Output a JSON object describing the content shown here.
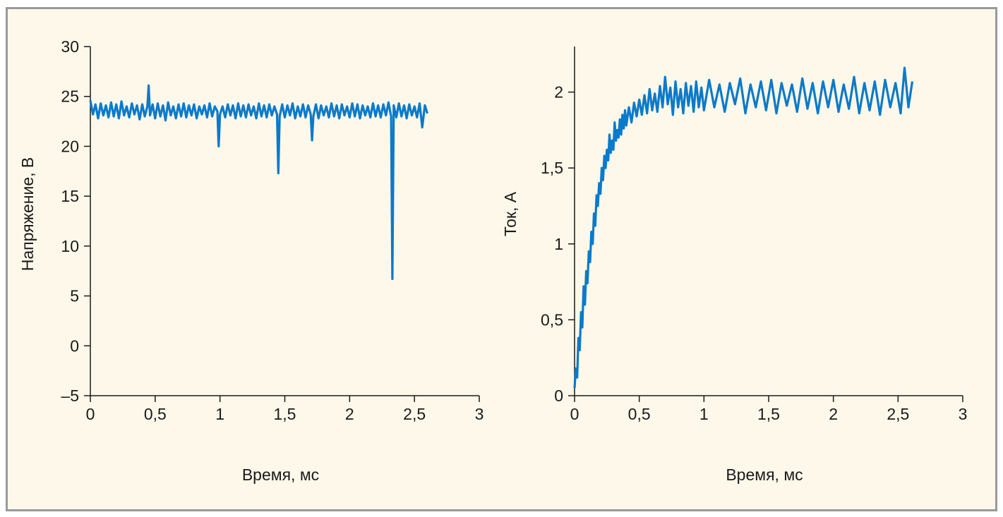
{
  "chart_data": [
    {
      "type": "line",
      "xlabel": "Время, мс",
      "ylabel": "Напряжение, В",
      "xlim": [
        0,
        3
      ],
      "ylim": [
        -5,
        30
      ],
      "xticks": [
        {
          "value": 0,
          "label": "0"
        },
        {
          "value": 0.5,
          "label": "0,5"
        },
        {
          "value": 1,
          "label": "1"
        },
        {
          "value": 1.5,
          "label": "1,5"
        },
        {
          "value": 2,
          "label": "2"
        },
        {
          "value": 2.5,
          "label": "2,5"
        },
        {
          "value": 3,
          "label": "3"
        }
      ],
      "yticks": [
        {
          "value": 30,
          "label": "30"
        },
        {
          "value": 25,
          "label": "25"
        },
        {
          "value": 20,
          "label": "20"
        },
        {
          "value": 15,
          "label": "15"
        },
        {
          "value": 10,
          "label": "10"
        },
        {
          "value": 5,
          "label": "5"
        },
        {
          "value": 0,
          "label": "0"
        },
        {
          "value": -5,
          "label": "–5"
        }
      ],
      "grid": false,
      "color": "#0a7acb",
      "series": [
        {
          "x": [
            0,
            0.02,
            0.04,
            0.06,
            0.08,
            0.1,
            0.12,
            0.14,
            0.16,
            0.18,
            0.2,
            0.22,
            0.24,
            0.26,
            0.28,
            0.3,
            0.32,
            0.34,
            0.36,
            0.38,
            0.4,
            0.42,
            0.44,
            0.45,
            0.46,
            0.48,
            0.5,
            0.52,
            0.54,
            0.56,
            0.58,
            0.6,
            0.62,
            0.64,
            0.66,
            0.68,
            0.7,
            0.72,
            0.74,
            0.76,
            0.78,
            0.8,
            0.82,
            0.84,
            0.86,
            0.88,
            0.9,
            0.92,
            0.94,
            0.96,
            0.98,
            0.99,
            1.0,
            1.02,
            1.04,
            1.06,
            1.08,
            1.1,
            1.12,
            1.14,
            1.16,
            1.18,
            1.2,
            1.22,
            1.24,
            1.26,
            1.28,
            1.3,
            1.32,
            1.34,
            1.36,
            1.38,
            1.4,
            1.42,
            1.44,
            1.45,
            1.46,
            1.48,
            1.5,
            1.52,
            1.54,
            1.56,
            1.58,
            1.6,
            1.62,
            1.64,
            1.66,
            1.68,
            1.7,
            1.71,
            1.72,
            1.74,
            1.76,
            1.78,
            1.8,
            1.82,
            1.84,
            1.86,
            1.88,
            1.9,
            1.92,
            1.94,
            1.96,
            1.98,
            2.0,
            2.02,
            2.04,
            2.06,
            2.08,
            2.1,
            2.12,
            2.14,
            2.16,
            2.18,
            2.2,
            2.22,
            2.24,
            2.26,
            2.28,
            2.3,
            2.32,
            2.33,
            2.34,
            2.36,
            2.38,
            2.4,
            2.42,
            2.44,
            2.46,
            2.48,
            2.5,
            2.52,
            2.54,
            2.56,
            2.58,
            2.6
          ],
          "y": [
            24.6,
            23.2,
            24.2,
            22.8,
            24.3,
            23.1,
            24.1,
            22.9,
            24.4,
            23.0,
            24.2,
            22.8,
            24.5,
            23.1,
            24.0,
            22.9,
            24.3,
            23.2,
            24.1,
            22.7,
            24.2,
            23.0,
            24.0,
            26.1,
            23.1,
            24.2,
            22.8,
            24.3,
            23.0,
            24.1,
            22.6,
            24.4,
            23.1,
            24.0,
            22.8,
            24.2,
            23.0,
            24.3,
            22.9,
            24.1,
            23.1,
            24.2,
            22.8,
            24.0,
            23.2,
            24.1,
            22.9,
            24.3,
            23.0,
            24.0,
            23.5,
            20.0,
            23.2,
            24.0,
            22.9,
            24.2,
            23.1,
            24.1,
            22.8,
            24.3,
            23.0,
            24.1,
            22.9,
            24.2,
            23.1,
            24.0,
            22.8,
            24.3,
            23.0,
            24.1,
            22.9,
            24.2,
            23.1,
            24.0,
            23.2,
            17.3,
            23.0,
            24.2,
            22.9,
            24.1,
            23.1,
            24.3,
            22.8,
            24.0,
            23.0,
            24.2,
            22.9,
            24.1,
            23.2,
            20.6,
            23.0,
            24.2,
            22.8,
            24.1,
            23.1,
            24.0,
            22.9,
            24.3,
            23.0,
            24.1,
            22.8,
            24.2,
            23.1,
            24.0,
            22.9,
            24.3,
            23.0,
            24.2,
            22.8,
            24.1,
            23.1,
            24.0,
            22.9,
            24.3,
            23.0,
            24.1,
            22.9,
            24.2,
            23.1,
            24.4,
            23.0,
            6.7,
            24.1,
            22.9,
            24.3,
            23.0,
            24.1,
            22.8,
            24.2,
            23.1,
            24.0,
            22.9,
            24.3,
            21.9,
            24.1,
            23.3
          ]
        }
      ]
    },
    {
      "type": "line",
      "xlabel": "Время, мс",
      "ylabel": "Ток, А",
      "xlim": [
        0,
        3
      ],
      "ylim": [
        0,
        2.3
      ],
      "xticks": [
        {
          "value": 0,
          "label": "0"
        },
        {
          "value": 0.5,
          "label": "0,5"
        },
        {
          "value": 1,
          "label": "1"
        },
        {
          "value": 1.5,
          "label": "1,5"
        },
        {
          "value": 2,
          "label": "2"
        },
        {
          "value": 2.5,
          "label": "2,5"
        },
        {
          "value": 3,
          "label": "3"
        }
      ],
      "yticks": [
        {
          "value": 2,
          "label": "2"
        },
        {
          "value": 1.5,
          "label": "1,5"
        },
        {
          "value": 1,
          "label": "1"
        },
        {
          "value": 0.5,
          "label": "0,5"
        },
        {
          "value": 0,
          "label": "0"
        }
      ],
      "grid": false,
      "color": "#0a7acb",
      "series": [
        {
          "x": [
            0,
            0.01,
            0.02,
            0.03,
            0.04,
            0.05,
            0.06,
            0.07,
            0.08,
            0.09,
            0.1,
            0.11,
            0.12,
            0.13,
            0.14,
            0.15,
            0.16,
            0.17,
            0.18,
            0.19,
            0.2,
            0.21,
            0.22,
            0.23,
            0.24,
            0.25,
            0.26,
            0.27,
            0.28,
            0.29,
            0.3,
            0.31,
            0.32,
            0.33,
            0.34,
            0.35,
            0.36,
            0.37,
            0.38,
            0.39,
            0.4,
            0.42,
            0.44,
            0.46,
            0.48,
            0.5,
            0.52,
            0.54,
            0.56,
            0.58,
            0.6,
            0.62,
            0.64,
            0.66,
            0.68,
            0.7,
            0.72,
            0.74,
            0.76,
            0.78,
            0.8,
            0.82,
            0.84,
            0.86,
            0.88,
            0.9,
            0.92,
            0.94,
            0.96,
            0.98,
            1.0,
            1.04,
            1.08,
            1.12,
            1.16,
            1.2,
            1.24,
            1.28,
            1.32,
            1.36,
            1.4,
            1.44,
            1.48,
            1.52,
            1.56,
            1.6,
            1.64,
            1.68,
            1.72,
            1.76,
            1.8,
            1.84,
            1.88,
            1.92,
            1.96,
            2.0,
            2.04,
            2.08,
            2.12,
            2.16,
            2.2,
            2.24,
            2.28,
            2.32,
            2.36,
            2.4,
            2.44,
            2.48,
            2.52,
            2.55,
            2.58,
            2.61
          ],
          "y": [
            0.05,
            0.18,
            0.12,
            0.38,
            0.3,
            0.55,
            0.45,
            0.72,
            0.6,
            0.82,
            0.74,
            0.95,
            0.88,
            1.08,
            1.0,
            1.2,
            1.12,
            1.32,
            1.25,
            1.4,
            1.33,
            1.5,
            1.42,
            1.58,
            1.5,
            1.62,
            1.55,
            1.72,
            1.6,
            1.68,
            1.62,
            1.8,
            1.68,
            1.75,
            1.7,
            1.82,
            1.72,
            1.85,
            1.76,
            1.88,
            1.78,
            1.9,
            1.8,
            1.93,
            1.84,
            1.95,
            1.85,
            1.98,
            1.86,
            2.02,
            1.88,
            1.99,
            1.87,
            2.04,
            1.9,
            2.1,
            1.92,
            2.03,
            1.85,
            2.07,
            1.9,
            2.02,
            1.86,
            2.06,
            1.91,
            2.04,
            1.87,
            2.07,
            1.9,
            2.03,
            1.88,
            2.08,
            1.9,
            2.05,
            1.87,
            2.06,
            1.92,
            2.09,
            1.86,
            2.05,
            1.9,
            2.07,
            1.88,
            2.08,
            1.86,
            2.06,
            1.91,
            2.05,
            1.87,
            2.09,
            1.89,
            2.06,
            1.86,
            2.07,
            1.9,
            2.08,
            1.87,
            2.05,
            1.89,
            2.1,
            1.86,
            2.06,
            1.88,
            2.07,
            1.85,
            2.08,
            1.9,
            2.06,
            1.86,
            2.16,
            1.9,
            2.07
          ]
        }
      ]
    }
  ]
}
